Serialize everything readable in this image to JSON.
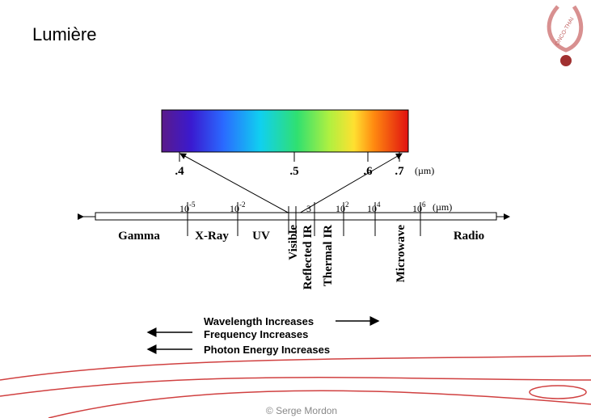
{
  "header": {
    "title": "Lumière",
    "logo_text": "ONCO-THAI"
  },
  "diagram": {
    "visible_ticks": [
      ".4",
      ".5",
      ".6",
      ".7"
    ],
    "visible_unit": "(µm)",
    "scale_ticks": [
      {
        "base": "10",
        "exp": "-5"
      },
      {
        "base": "10",
        "exp": "-2"
      },
      {
        "base": "3",
        "exp": ""
      },
      {
        "base": "10",
        "exp": "2"
      },
      {
        "base": "10",
        "exp": "4"
      },
      {
        "base": "10",
        "exp": "6"
      }
    ],
    "scale_unit": "(µm)",
    "bands": [
      "Gamma",
      "X-Ray",
      "UV",
      "Radio"
    ],
    "vertical_bands": [
      "Visible",
      "Reflected IR",
      "Thermal IR",
      "Microwave"
    ],
    "legend": [
      "Wavelength Increases",
      "Frequency Increases",
      "Photon Energy Increases"
    ]
  },
  "footer": "© Serge Mordon"
}
